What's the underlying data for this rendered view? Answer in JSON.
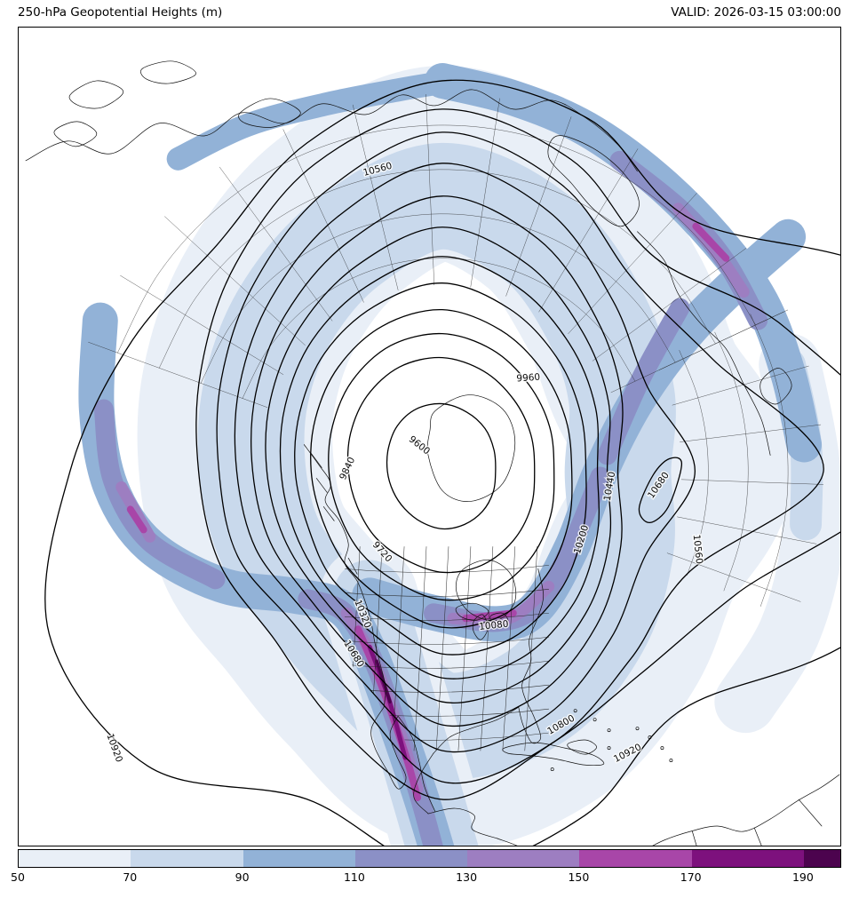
{
  "header": {
    "title": "250-hPa Geopotential Heights (m)",
    "valid": "VALID: 2026-03-15 03:00:00"
  },
  "map": {
    "contour_labels": [
      "10560",
      "9840",
      "9600",
      "9960",
      "10440",
      "10680",
      "10200",
      "10560",
      "9720",
      "10320",
      "10680",
      "10080",
      "10800",
      "10920",
      "10920"
    ],
    "labeled_levels_m": [
      9600,
      9720,
      9840,
      9960,
      10080,
      10200,
      10320,
      10440,
      10560,
      10680,
      10800,
      10920
    ],
    "line_color": "#000000",
    "coast_color": "#111111"
  },
  "colorbar": {
    "ticks": [
      "50",
      "70",
      "90",
      "110",
      "130",
      "150",
      "170",
      "190"
    ],
    "segment_colors": [
      "#e9eff7",
      "#c9d9ec",
      "#92b2d7",
      "#8b90c6",
      "#9d7ec1",
      "#a846a8",
      "#7d117d",
      "#4c034e"
    ]
  }
}
